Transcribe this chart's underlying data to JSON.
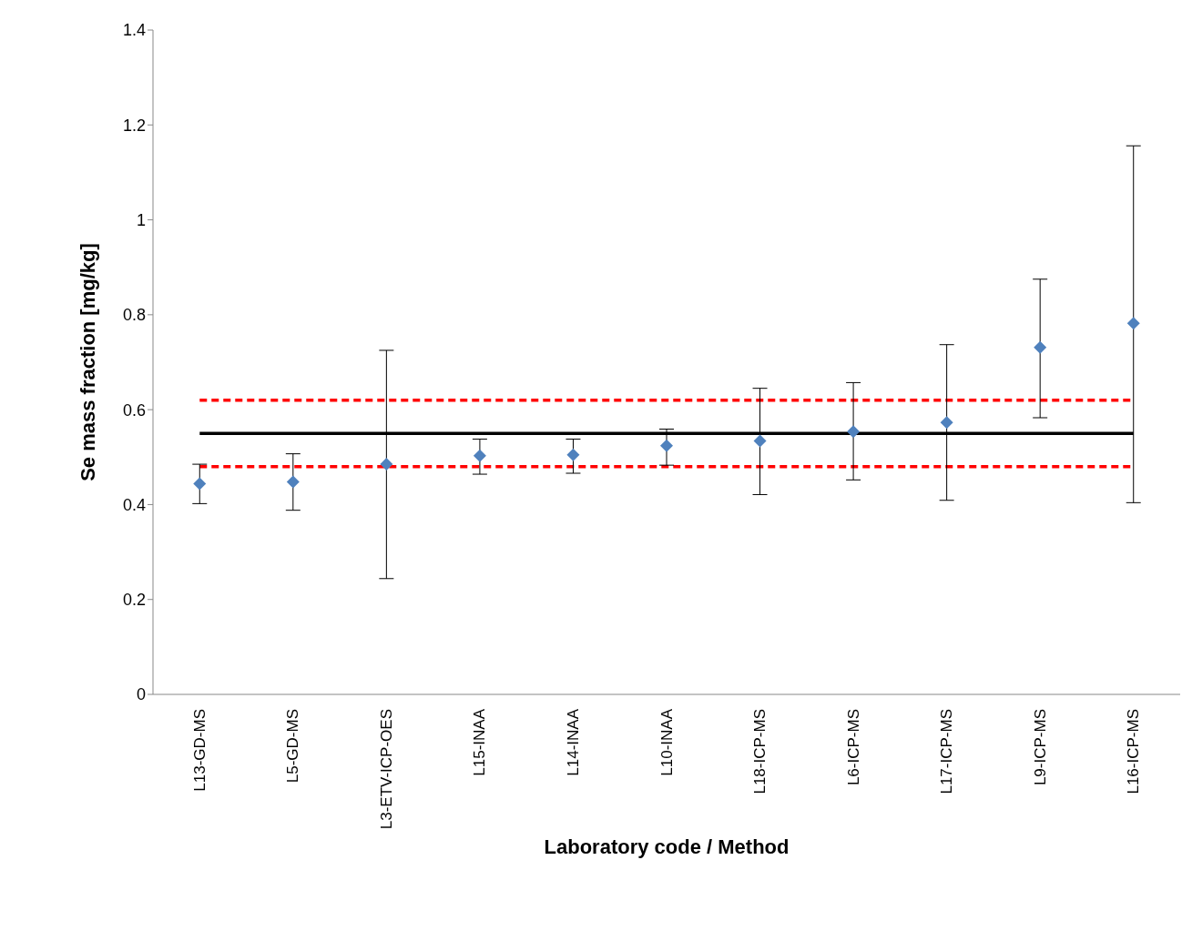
{
  "chart_data": {
    "type": "scatter",
    "xlabel": "Laboratory code / Method",
    "ylabel": "Se mass fraction [mg/kg]",
    "categories": [
      "L13-GD-MS",
      "L5-GD-MS",
      "L3-ETV-ICP-OES",
      "L15-INAA",
      "L14-INAA",
      "L10-INAA",
      "L18-ICP-MS",
      "L6-ICP-MS",
      "L17-ICP-MS",
      "L9-ICP-MS",
      "L16-ICP-MS"
    ],
    "series": [
      {
        "color": "#4f81bd",
        "values": [
          0.444,
          0.448,
          0.485,
          0.503,
          0.505,
          0.524,
          0.534,
          0.554,
          0.573,
          0.731,
          0.782
        ],
        "errors": [
          [
            0.402,
            0.485
          ],
          [
            0.388,
            0.507
          ],
          [
            0.244,
            0.725
          ],
          [
            0.464,
            0.538
          ],
          [
            0.466,
            0.538
          ],
          [
            0.483,
            0.559
          ],
          [
            0.421,
            0.645
          ],
          [
            0.452,
            0.657
          ],
          [
            0.409,
            0.737
          ],
          [
            0.583,
            0.875
          ],
          [
            0.404,
            1.156
          ]
        ]
      }
    ],
    "marker": "diamond",
    "ylim": [
      0,
      1.4
    ],
    "yticks": [
      0,
      0.2,
      0.4,
      0.6,
      0.8,
      1,
      1.2,
      1.4
    ],
    "grid": false,
    "legend": false,
    "ref_lines": [
      {
        "axis": "y",
        "value": 0.55,
        "color": "#000000",
        "line_style": "solid"
      },
      {
        "axis": "y",
        "value": 0.62,
        "color": "#ff0000",
        "line_style": "dashed"
      },
      {
        "axis": "y",
        "value": 0.48,
        "color": "#ff0000",
        "line_style": "dashed"
      }
    ]
  }
}
